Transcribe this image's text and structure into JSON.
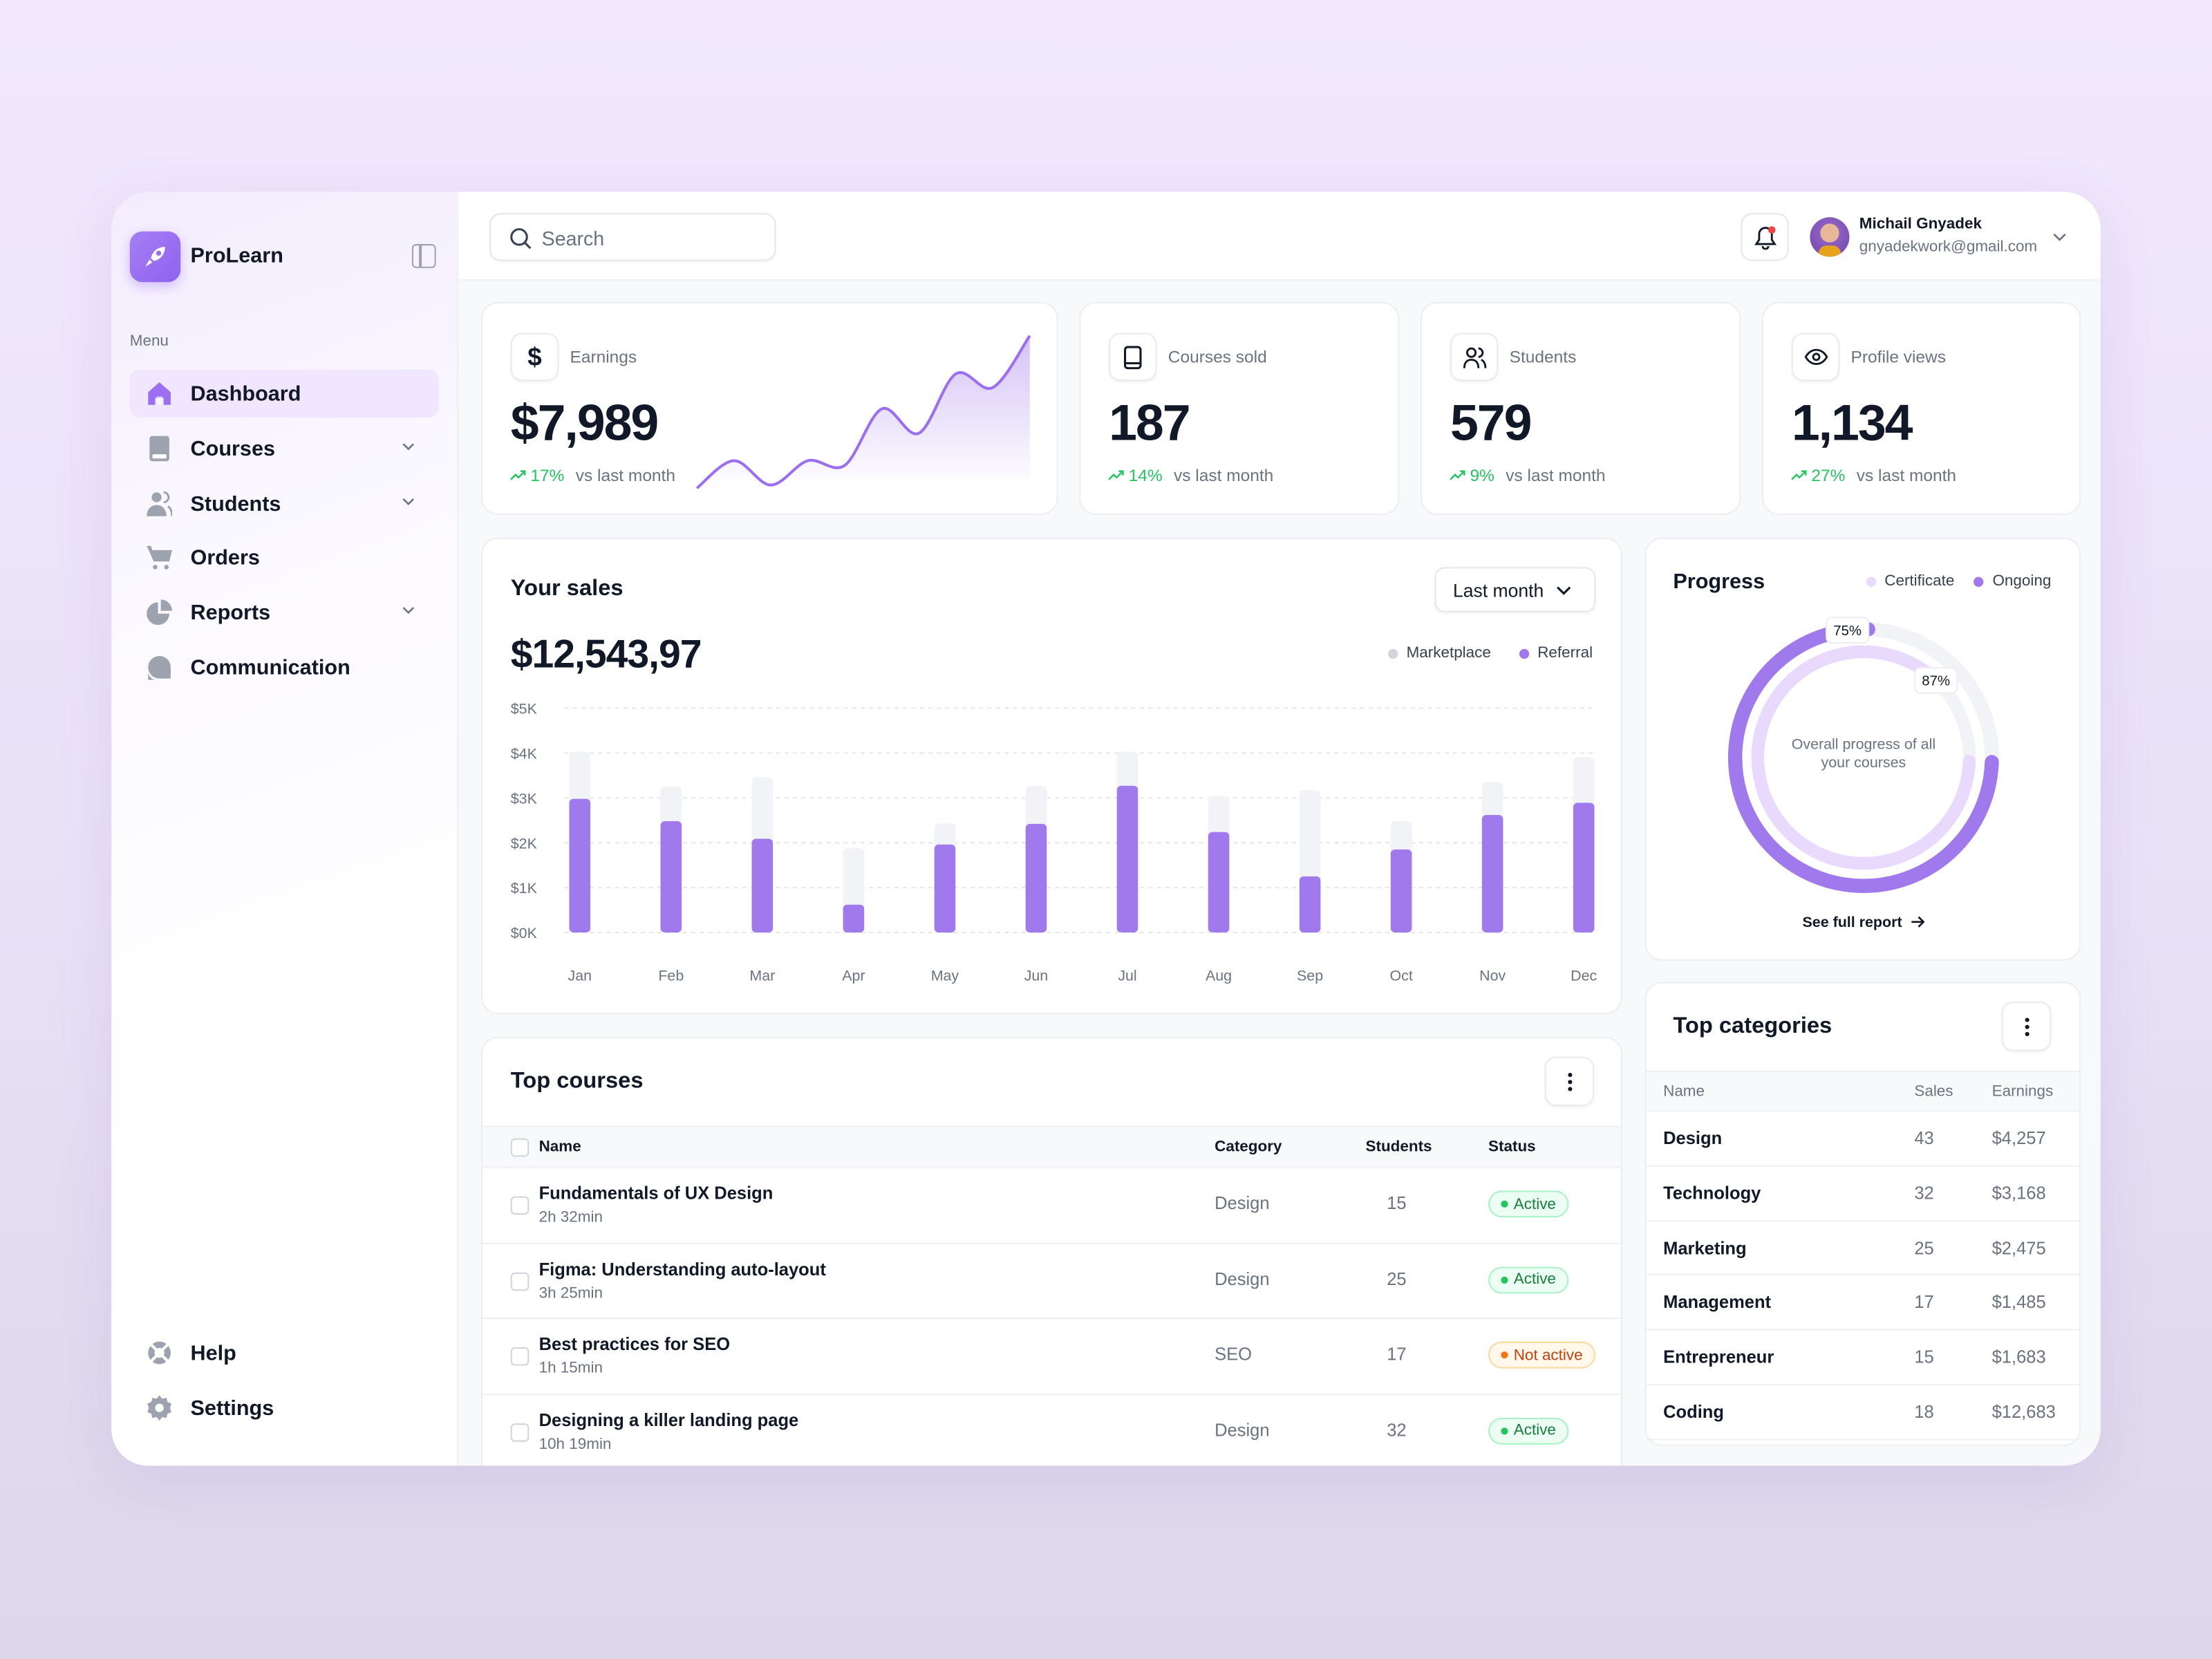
{
  "app": {
    "name": "ProLearn"
  },
  "sidebar": {
    "menu_label": "Menu",
    "items": [
      {
        "label": "Dashboard",
        "icon": "home-icon",
        "active": true,
        "expandable": false
      },
      {
        "label": "Courses",
        "icon": "book-icon",
        "expandable": true
      },
      {
        "label": "Students",
        "icon": "users-icon",
        "expandable": true
      },
      {
        "label": "Orders",
        "icon": "cart-icon",
        "expandable": false
      },
      {
        "label": "Reports",
        "icon": "pie-chart-icon",
        "expandable": true
      },
      {
        "label": "Communication",
        "icon": "chat-icon",
        "expandable": false
      }
    ],
    "bottom": [
      {
        "label": "Help",
        "icon": "lifebuoy-icon"
      },
      {
        "label": "Settings",
        "icon": "gear-icon"
      }
    ]
  },
  "header": {
    "search_placeholder": "Search",
    "user": {
      "name": "Michail Gnyadek",
      "email": "gnyadekwork@gmail.com"
    },
    "notification_dot": true
  },
  "stats": [
    {
      "label": "Earnings",
      "value": "$7,989",
      "change": "17%",
      "suffix": "vs last month",
      "icon": "dollar-icon",
      "sparkline": [
        0,
        18,
        2,
        18,
        15,
        52,
        36,
        75,
        66,
        100
      ]
    },
    {
      "label": "Courses sold",
      "value": "187",
      "change": "14%",
      "suffix": "vs last month",
      "icon": "tablet-icon"
    },
    {
      "label": "Students",
      "value": "579",
      "change": "9%",
      "suffix": "vs last month",
      "icon": "users-icon"
    },
    {
      "label": "Profile views",
      "value": "1,134",
      "change": "27%",
      "suffix": "vs last month",
      "icon": "eye-icon"
    }
  ],
  "sales": {
    "title": "Your sales",
    "period": "Last month",
    "total": "$12,543,97"
  },
  "chart_data": {
    "type": "bar",
    "stacked": true,
    "categories": [
      "Jan",
      "Feb",
      "Mar",
      "Apr",
      "May",
      "Jun",
      "Jul",
      "Aug",
      "Sep",
      "Oct",
      "Nov",
      "Dec"
    ],
    "series": [
      {
        "name": "Referral",
        "color": "#a079ec",
        "values": [
          2980,
          2480,
          2090,
          620,
          1960,
          2420,
          3270,
          2240,
          1250,
          1850,
          2620,
          2890
        ]
      },
      {
        "name": "Marketplace",
        "color": "#f2f3f6",
        "values": [
          1050,
          770,
          1370,
          1260,
          470,
          850,
          760,
          800,
          1920,
          630,
          730,
          1020
        ]
      }
    ],
    "legend": [
      "Marketplace",
      "Referral"
    ],
    "legend_colors": [
      "#d1d5db",
      "#a079ec"
    ],
    "yticks": [
      "$0K",
      "$1K",
      "$2K",
      "$3K",
      "$4K",
      "$5K"
    ],
    "ylim": [
      0,
      5000
    ],
    "grid": true,
    "legend_position": "top-right"
  },
  "progress": {
    "title": "Progress",
    "legend": [
      {
        "label": "Certificate",
        "color": "#e9d9fd"
      },
      {
        "label": "Ongoing",
        "color": "#a079ec"
      }
    ],
    "ongoing_pct": 75,
    "ongoing_label": "75%",
    "certificate_pct": 87,
    "certificate_label": "87%",
    "center_text": "Overall progress of all your courses",
    "link": "See full report"
  },
  "top_courses": {
    "title": "Top courses",
    "columns": [
      "Name",
      "Category",
      "Students",
      "Status"
    ],
    "rows": [
      {
        "name": "Fundamentals of UX Design",
        "duration": "2h 32min",
        "category": "Design",
        "students": "15",
        "status": "Active"
      },
      {
        "name": "Figma: Understanding auto-layout",
        "duration": "3h 25min",
        "category": "Design",
        "students": "25",
        "status": "Active"
      },
      {
        "name": "Best practices for SEO",
        "duration": "1h 15min",
        "category": "SEO",
        "students": "17",
        "status": "Not active"
      },
      {
        "name": "Designing a killer landing page",
        "duration": "10h 19min",
        "category": "Design",
        "students": "32",
        "status": "Active"
      }
    ]
  },
  "top_categories": {
    "title": "Top categories",
    "columns": [
      "Name",
      "Sales",
      "Earnings"
    ],
    "rows": [
      {
        "name": "Design",
        "sales": "43",
        "earnings": "$4,257"
      },
      {
        "name": "Technology",
        "sales": "32",
        "earnings": "$3,168"
      },
      {
        "name": "Marketing",
        "sales": "25",
        "earnings": "$2,475"
      },
      {
        "name": "Management",
        "sales": "17",
        "earnings": "$1,485"
      },
      {
        "name": "Entrepreneur",
        "sales": "15",
        "earnings": "$1,683"
      },
      {
        "name": "Coding",
        "sales": "18",
        "earnings": "$12,683"
      }
    ]
  }
}
